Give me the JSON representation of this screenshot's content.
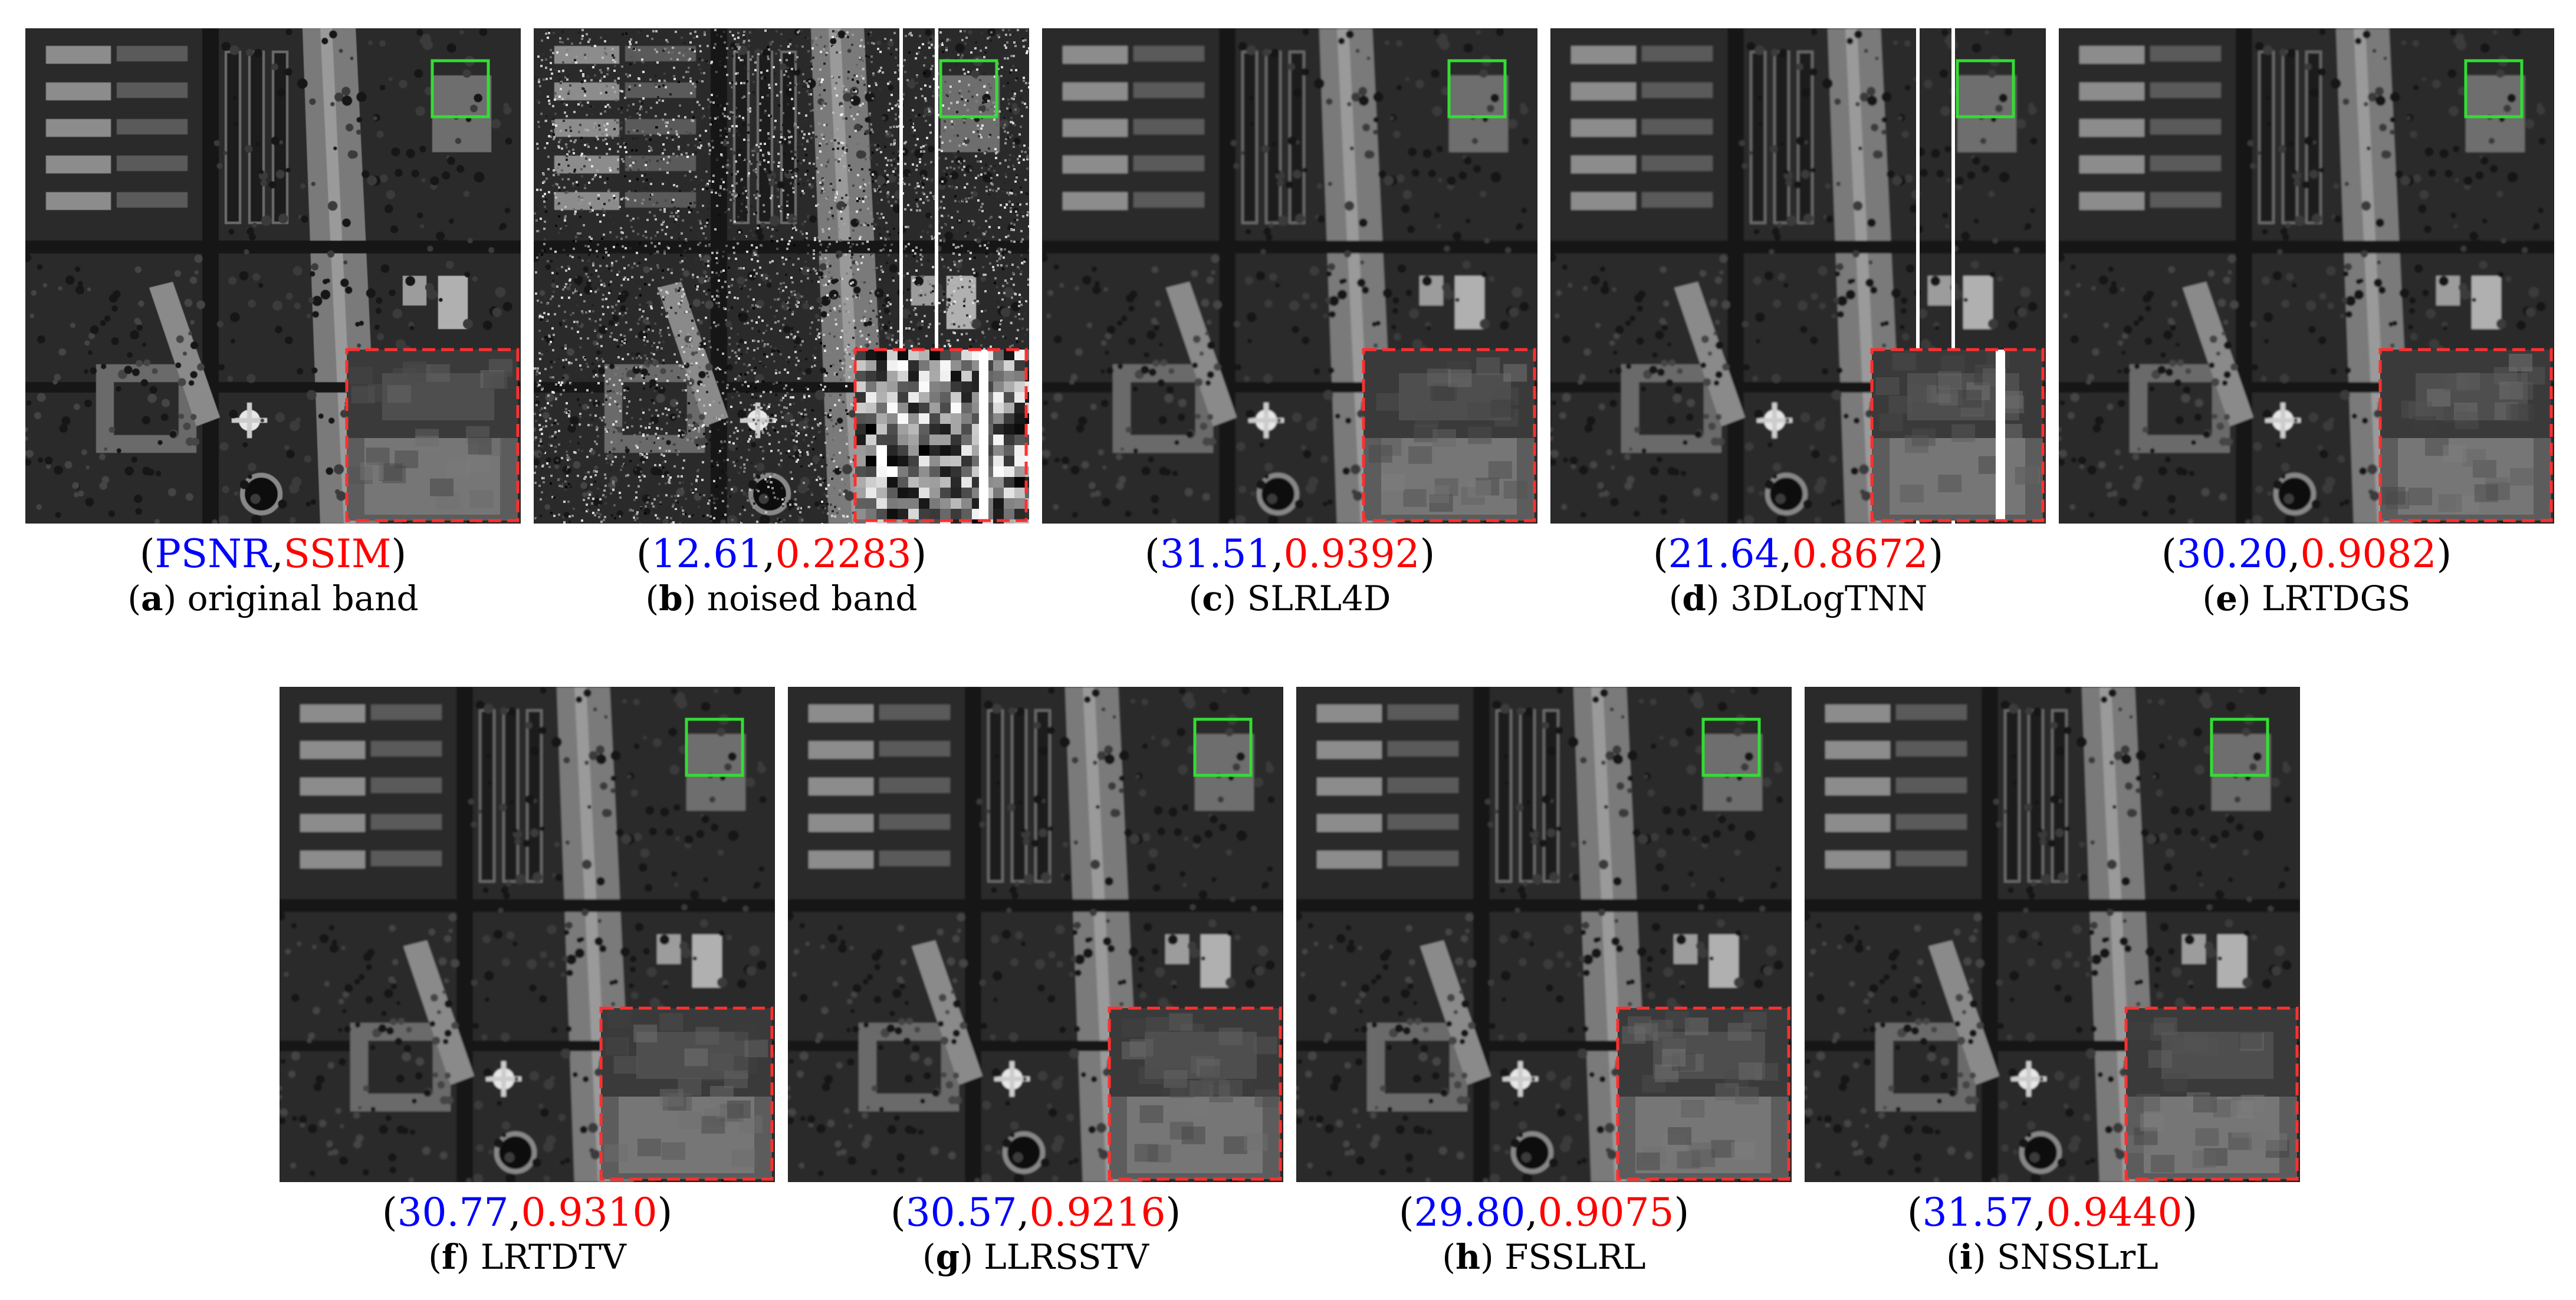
{
  "colors": {
    "psnr": "#0000ff",
    "ssim": "#ff0000",
    "zoom_box": "#33dd33",
    "inset_border": "#ff3030"
  },
  "panels": [
    {
      "id": "a",
      "letter": "a",
      "name": "original band",
      "metric_a": "PSNR",
      "metric_b": "SSIM",
      "sep": ",",
      "kind": "clean",
      "stripes": false
    },
    {
      "id": "b",
      "letter": "b",
      "name": "noised band",
      "metric_a": "12.61",
      "metric_b": "0.2283",
      "sep": ",",
      "kind": "noisy",
      "stripes": true
    },
    {
      "id": "c",
      "letter": "c",
      "name": "SLRL4D",
      "metric_a": "31.51",
      "metric_b": "0.9392",
      "sep": ",",
      "kind": "restored",
      "stripes": false
    },
    {
      "id": "d",
      "letter": "d",
      "name": "3DLogTNN",
      "metric_a": "21.64",
      "metric_b": "0.8672",
      "sep": ",",
      "kind": "restored",
      "stripes": true
    },
    {
      "id": "e",
      "letter": "e",
      "name": "LRTDGS",
      "metric_a": "30.20",
      "metric_b": "0.9082",
      "sep": ",",
      "kind": "restored",
      "stripes": false
    },
    {
      "id": "f",
      "letter": "f",
      "name": "LRTDTV",
      "metric_a": "30.77",
      "metric_b": "0.9310",
      "sep": ",",
      "kind": "restored",
      "stripes": false
    },
    {
      "id": "g",
      "letter": "g",
      "name": "LLRSSTV",
      "metric_a": "30.57",
      "metric_b": "0.9216",
      "sep": ",",
      "kind": "restored",
      "stripes": false
    },
    {
      "id": "h",
      "letter": "h",
      "name": "FSSLRL",
      "metric_a": "29.80",
      "metric_b": "0.9075",
      "sep": ",",
      "kind": "restored",
      "stripes": false
    },
    {
      "id": "i",
      "letter": "i",
      "name": "SNSSLrL",
      "metric_a": "31.57",
      "metric_b": "0.9440",
      "sep": ",",
      "kind": "restored",
      "stripes": false
    }
  ]
}
